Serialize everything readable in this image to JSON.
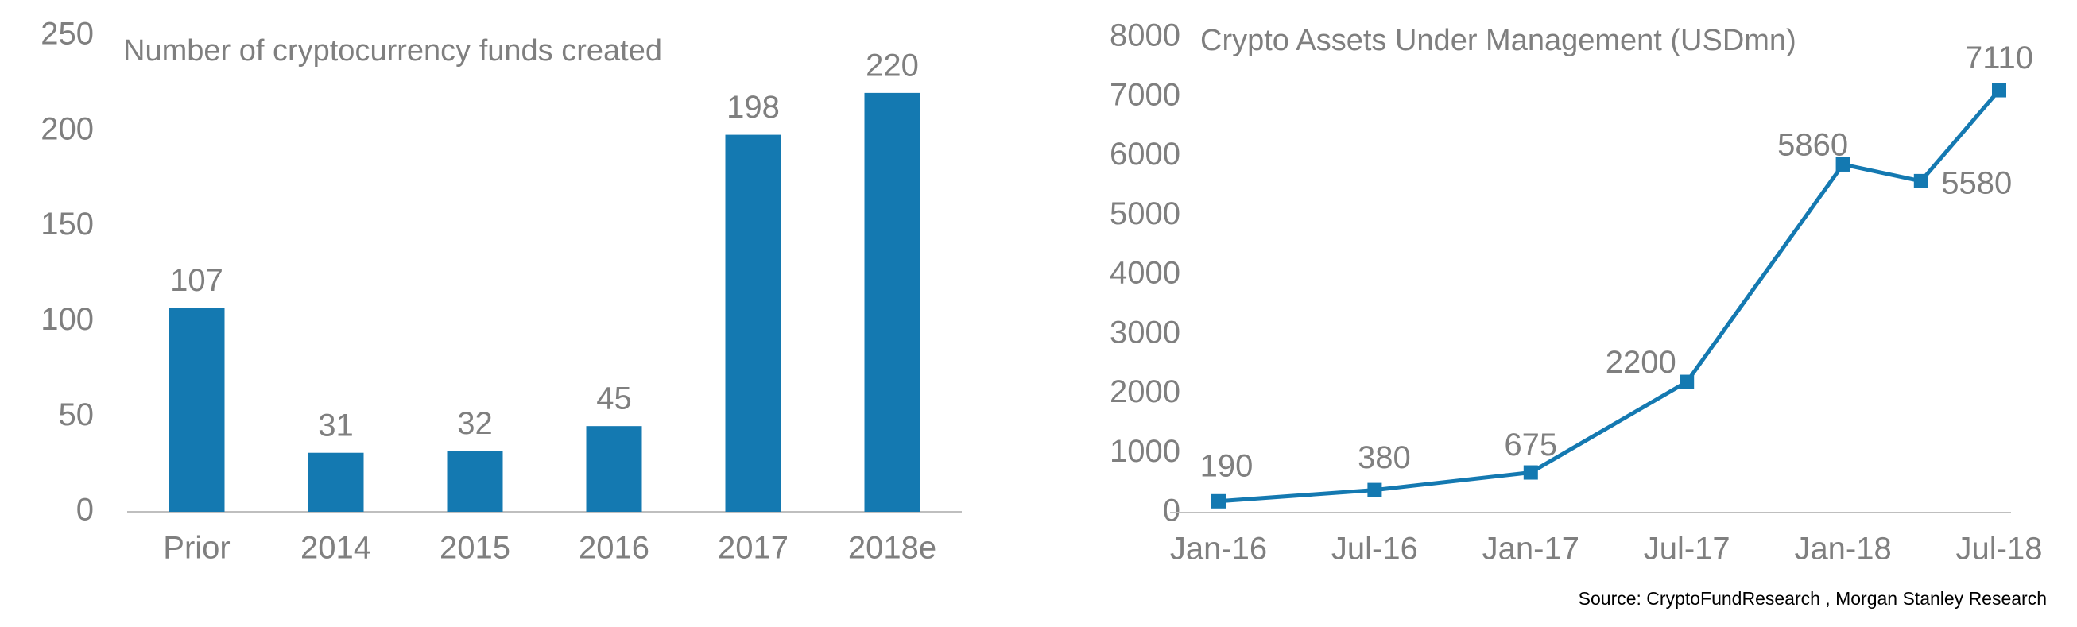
{
  "colors": {
    "series": "#1479b1",
    "text": "#7f7f7f",
    "axis": "#bfbfbf"
  },
  "chart_data": [
    {
      "type": "bar",
      "title": "Number of cryptocurrency funds created",
      "categories": [
        "Prior",
        "2014",
        "2015",
        "2016",
        "2017",
        "2018e"
      ],
      "values": [
        107,
        31,
        32,
        45,
        198,
        220
      ],
      "data_labels": [
        "107",
        "31",
        "32",
        "45",
        "198",
        "220"
      ],
      "ylim": [
        0,
        250
      ],
      "yticks": [
        0,
        50,
        100,
        150,
        200,
        250
      ],
      "xlabel": "",
      "ylabel": "",
      "grid": false,
      "legend": "none"
    },
    {
      "type": "line",
      "title": "Crypto Assets Under Management (USDmn)",
      "x": [
        "2016-01",
        "2016-07",
        "2017-01",
        "2017-07",
        "2018-01",
        "2018-04",
        "2018-07"
      ],
      "values": [
        190,
        380,
        675,
        2200,
        5860,
        5580,
        7110
      ],
      "data_labels": [
        "190",
        "380",
        "675",
        "2200",
        "5860",
        "5580",
        "7110"
      ],
      "xticks": [
        "Jan-16",
        "Jul-16",
        "Jan-17",
        "Jul-17",
        "Jan-18",
        "Jul-18"
      ],
      "ylim": [
        0,
        8000
      ],
      "yticks": [
        0,
        1000,
        2000,
        3000,
        4000,
        5000,
        6000,
        7000,
        8000
      ],
      "xlabel": "",
      "ylabel": "",
      "grid": false,
      "legend": "none",
      "marker": "square"
    }
  ],
  "source": "Source: CryptoFundResearch , Morgan Stanley Research"
}
